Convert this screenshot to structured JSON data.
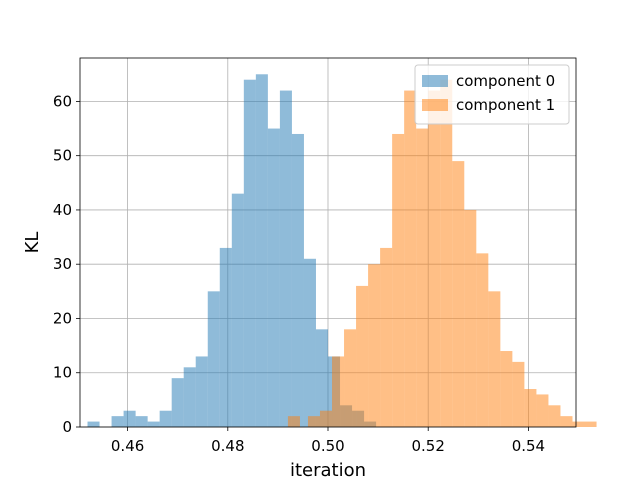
{
  "chart_data": {
    "type": "histogram",
    "xlabel": "iteration",
    "ylabel": "KL",
    "xlim": [
      0.4505,
      0.5495
    ],
    "ylim": [
      0,
      68
    ],
    "xticks": [
      0.46,
      0.48,
      0.5,
      0.52,
      0.54
    ],
    "xtick_labels": [
      "0.46",
      "0.48",
      "0.50",
      "0.52",
      "0.54"
    ],
    "yticks": [
      0,
      10,
      20,
      30,
      40,
      50,
      60
    ],
    "ytick_labels": [
      "0",
      "10",
      "20",
      "30",
      "40",
      "50",
      "60"
    ],
    "grid": true,
    "legend_position": "top-right",
    "series": [
      {
        "name": "component 0",
        "color": "#1f77b4",
        "alpha": 0.5,
        "bin_start": 0.452,
        "bin_width": 0.0024,
        "counts": [
          1,
          0,
          2,
          3,
          2,
          1,
          3,
          9,
          11,
          13,
          25,
          33,
          43,
          64,
          65,
          55,
          62,
          54,
          31,
          18,
          13,
          4,
          3,
          1
        ]
      },
      {
        "name": "component 1",
        "color": "#ff7f0e",
        "alpha": 0.5,
        "bin_start": 0.496,
        "bin_width": 0.0024,
        "counts": [
          2,
          3,
          13,
          18,
          26,
          30,
          33,
          54,
          62,
          55,
          62,
          64,
          49,
          40,
          32,
          25,
          14,
          12,
          7,
          6,
          4,
          2,
          1,
          1
        ],
        "leading_bins": [
          {
            "x0": 0.492,
            "count": 2
          }
        ]
      }
    ]
  }
}
